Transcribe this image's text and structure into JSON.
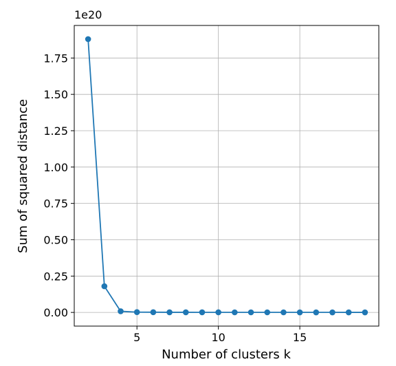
{
  "chart_data": {
    "type": "line",
    "title": "",
    "xlabel": "Number of clusters k",
    "ylabel": "Sum of squared distance",
    "y_offset_text": "1e20",
    "x": [
      2,
      3,
      4,
      5,
      6,
      7,
      8,
      9,
      10,
      11,
      12,
      13,
      14,
      15,
      16,
      17,
      18,
      19
    ],
    "series": [
      {
        "values": [
          1.88,
          0.18,
          0.008,
          0.002,
          0.0015,
          0.001,
          0.001,
          0.0008,
          0.0008,
          0.0007,
          0.0007,
          0.0006,
          0.0006,
          0.0005,
          0.0005,
          0.0005,
          0.0004,
          0.0004
        ],
        "color": "#1f77b4",
        "marker": "circle"
      }
    ],
    "xlim": [
      1.15,
      19.85
    ],
    "ylim": [
      -0.094,
      1.974
    ],
    "x_ticks": [
      5,
      10,
      15
    ],
    "x_tick_labels": [
      "5",
      "10",
      "15"
    ],
    "y_ticks": [
      0,
      0.25,
      0.5,
      0.75,
      1.0,
      1.25,
      1.5,
      1.75
    ],
    "y_tick_labels": [
      "0.00",
      "0.25",
      "0.50",
      "0.75",
      "1.00",
      "1.25",
      "1.50",
      "1.75"
    ],
    "grid": true,
    "legend": "none"
  }
}
